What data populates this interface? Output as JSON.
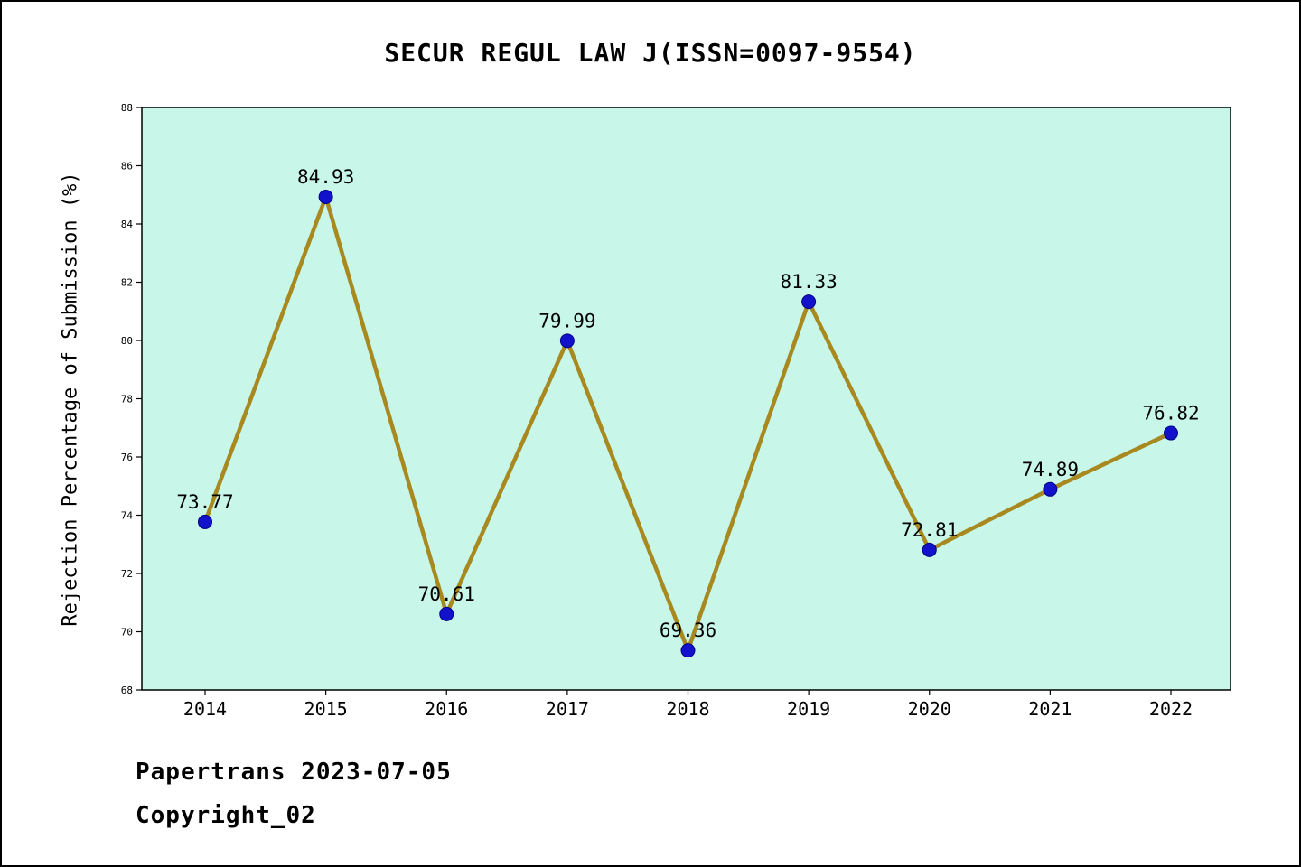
{
  "header": {
    "title": "SECUR REGUL LAW J(ISSN=0097-9554)"
  },
  "footer": {
    "line1": "Papertrans 2023-07-05",
    "line2": "Copyright_02"
  },
  "chart_data": {
    "type": "line",
    "title": "SECUR REGUL LAW J(ISSN=0097-9554)",
    "xlabel": "",
    "ylabel": "Rejection Percentage of Submission (%)",
    "x": [
      2014,
      2015,
      2016,
      2017,
      2018,
      2019,
      2020,
      2021,
      2022
    ],
    "values": [
      73.77,
      84.93,
      70.61,
      79.99,
      69.36,
      81.33,
      72.81,
      74.89,
      76.82
    ],
    "point_labels": [
      "73.77",
      "84.93",
      "70.61",
      "79.99",
      "69.36",
      "81.33",
      "72.81",
      "74.89",
      "76.82"
    ],
    "ylim": [
      68,
      88
    ],
    "yticks": [
      68,
      70,
      72,
      74,
      76,
      78,
      80,
      82,
      84,
      86,
      88
    ],
    "grid": false,
    "legend": null,
    "colors": {
      "plot_bg": "#c8f7e9",
      "line": "#a8891f",
      "marker_fill": "#1212cc",
      "marker_edge": "#000080",
      "text": "#000000"
    }
  }
}
